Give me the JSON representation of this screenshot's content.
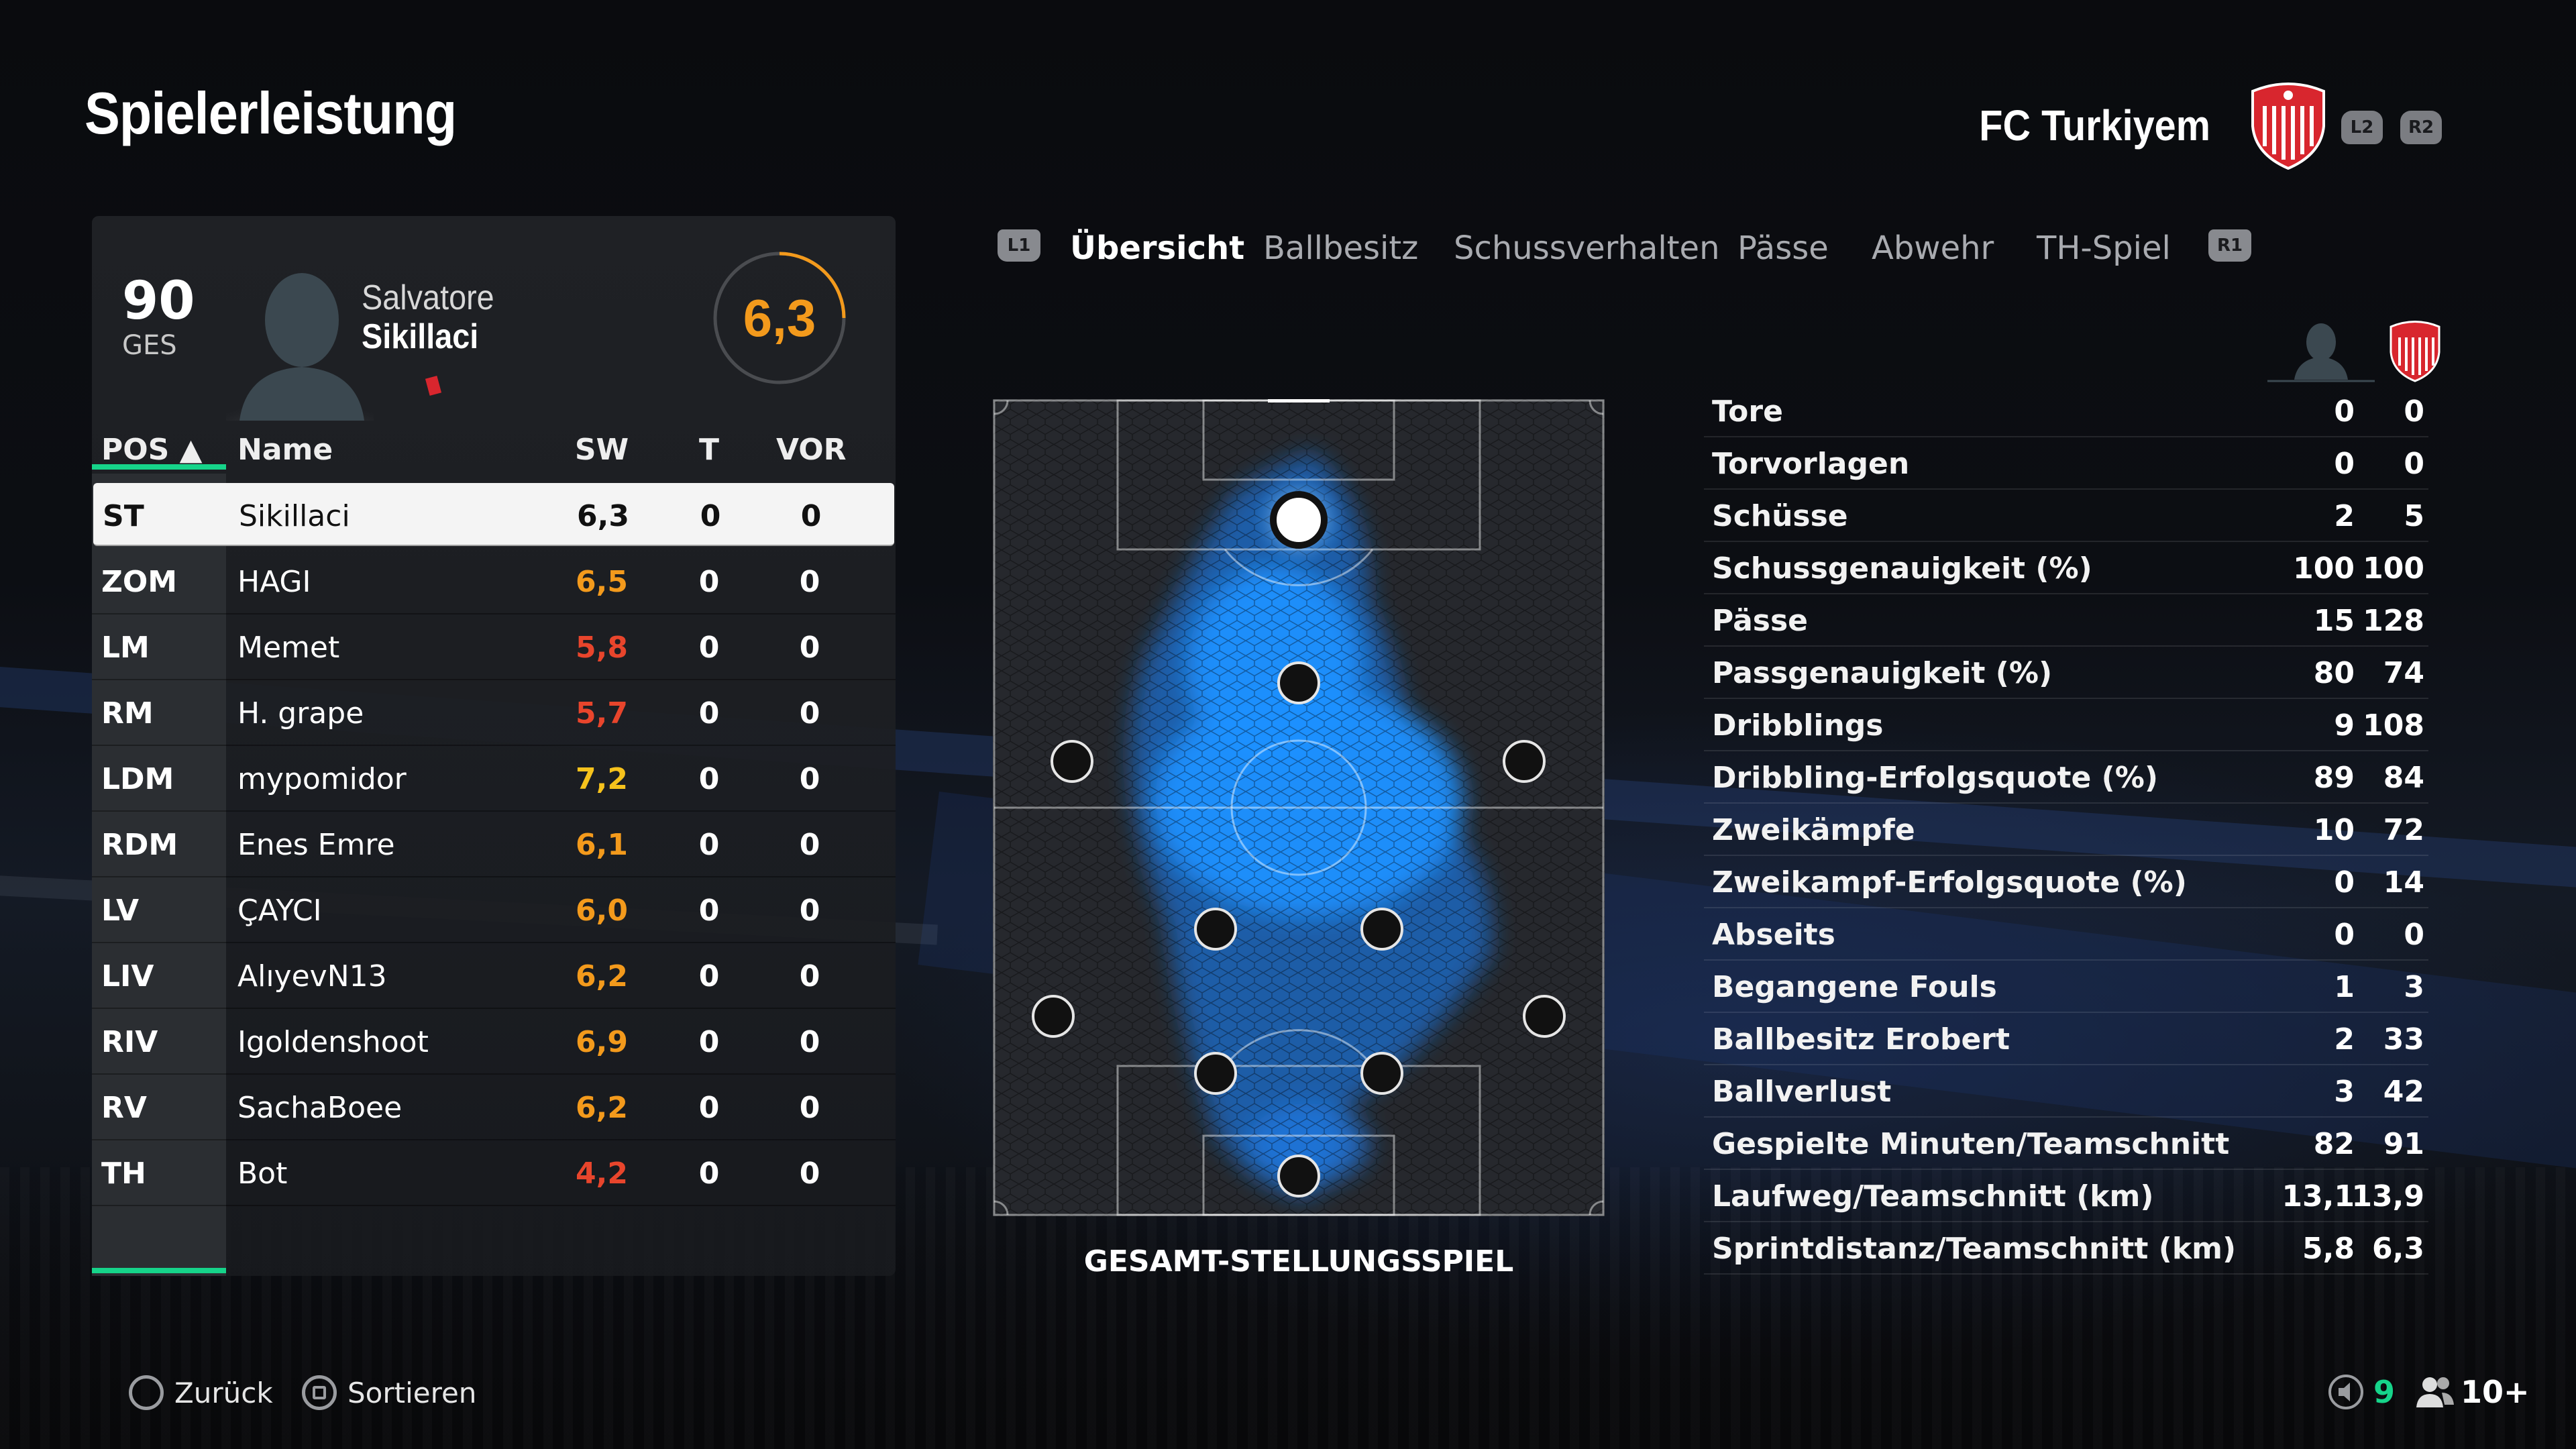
{
  "header": {
    "title": "Spielerleistung",
    "club_name": "FC Turkiyem",
    "shoulder_left": "L2",
    "shoulder_right": "R2"
  },
  "player_card": {
    "overall": "90",
    "overall_label": "GES",
    "first_name": "Salvatore",
    "last_name": "Sikillaci",
    "rating": "6,3"
  },
  "table": {
    "headers": {
      "pos": "POS ▲",
      "name": "Name",
      "sw": "SW",
      "t": "T",
      "vor": "VOR"
    },
    "rows": [
      {
        "pos": "ST",
        "name": "Sikillaci",
        "sw": "6,3",
        "t": "0",
        "vor": "0",
        "rating_color": "#111111"
      },
      {
        "pos": "ZOM",
        "name": "HAGI",
        "sw": "6,5",
        "t": "0",
        "vor": "0",
        "rating_color": "#f39a1c"
      },
      {
        "pos": "LM",
        "name": "Memet",
        "sw": "5,8",
        "t": "0",
        "vor": "0",
        "rating_color": "#e8452c"
      },
      {
        "pos": "RM",
        "name": "H. grape",
        "sw": "5,7",
        "t": "0",
        "vor": "0",
        "rating_color": "#e8452c"
      },
      {
        "pos": "LDM",
        "name": "mypomidor",
        "sw": "7,2",
        "t": "0",
        "vor": "0",
        "rating_color": "#f6c21c"
      },
      {
        "pos": "RDM",
        "name": "Enes Emre",
        "sw": "6,1",
        "t": "0",
        "vor": "0",
        "rating_color": "#f39a1c"
      },
      {
        "pos": "LV",
        "name": "ÇAYCI",
        "sw": "6,0",
        "t": "0",
        "vor": "0",
        "rating_color": "#f39a1c"
      },
      {
        "pos": "LIV",
        "name": "AlıyevN13",
        "sw": "6,2",
        "t": "0",
        "vor": "0",
        "rating_color": "#f39a1c"
      },
      {
        "pos": "RIV",
        "name": "Igoldenshoot",
        "sw": "6,9",
        "t": "0",
        "vor": "0",
        "rating_color": "#f39a1c"
      },
      {
        "pos": "RV",
        "name": "SachaBoee",
        "sw": "6,2",
        "t": "0",
        "vor": "0",
        "rating_color": "#f39a1c"
      },
      {
        "pos": "TH",
        "name": "Bot",
        "sw": "4,2",
        "t": "0",
        "vor": "0",
        "rating_color": "#e8452c"
      }
    ]
  },
  "tabs": {
    "left_button": "L1",
    "right_button": "R1",
    "items": [
      "Übersicht",
      "Ballbesitz",
      "Schussverhalten",
      "Pässe",
      "Abwehr",
      "TH-Spiel"
    ],
    "active_index": 0
  },
  "pitch": {
    "label": "GESAMT-STELLUNGSSPIEL"
  },
  "stats": [
    {
      "label": "Tore",
      "player": "0",
      "team": "0"
    },
    {
      "label": "Torvorlagen",
      "player": "0",
      "team": "0"
    },
    {
      "label": "Schüsse",
      "player": "2",
      "team": "5"
    },
    {
      "label": "Schussgenauigkeit (%)",
      "player": "100",
      "team": "100"
    },
    {
      "label": "Pässe",
      "player": "15",
      "team": "128"
    },
    {
      "label": "Passgenauigkeit (%)",
      "player": "80",
      "team": "74"
    },
    {
      "label": "Dribblings",
      "player": "9",
      "team": "108"
    },
    {
      "label": "Dribbling-Erfolgsquote (%)",
      "player": "89",
      "team": "84"
    },
    {
      "label": "Zweikämpfe",
      "player": "10",
      "team": "72"
    },
    {
      "label": "Zweikampf-Erfolgsquote (%)",
      "player": "0",
      "team": "14"
    },
    {
      "label": "Abseits",
      "player": "0",
      "team": "0"
    },
    {
      "label": "Begangene Fouls",
      "player": "1",
      "team": "3"
    },
    {
      "label": "Ballbesitz Erobert",
      "player": "2",
      "team": "33"
    },
    {
      "label": "Ballverlust",
      "player": "3",
      "team": "42"
    },
    {
      "label": "Gespielte Minuten/Teamschnitt",
      "player": "82",
      "team": "91"
    },
    {
      "label": "Laufweg/Teamschnitt (km)",
      "player": "13,1",
      "team": "13,9"
    },
    {
      "label": "Sprintdistanz/Teamschnitt (km)",
      "player": "5,8",
      "team": "6,3"
    }
  ],
  "footer": {
    "back_label": "Zurück",
    "sort_label": "Sortieren",
    "voice_count": "9",
    "players_count": "10+"
  },
  "colors": {
    "accent_green": "#16d48a",
    "rating_orange": "#f39a1c",
    "heat_blue": "#1e90ff",
    "crest_red": "#d8262e"
  }
}
